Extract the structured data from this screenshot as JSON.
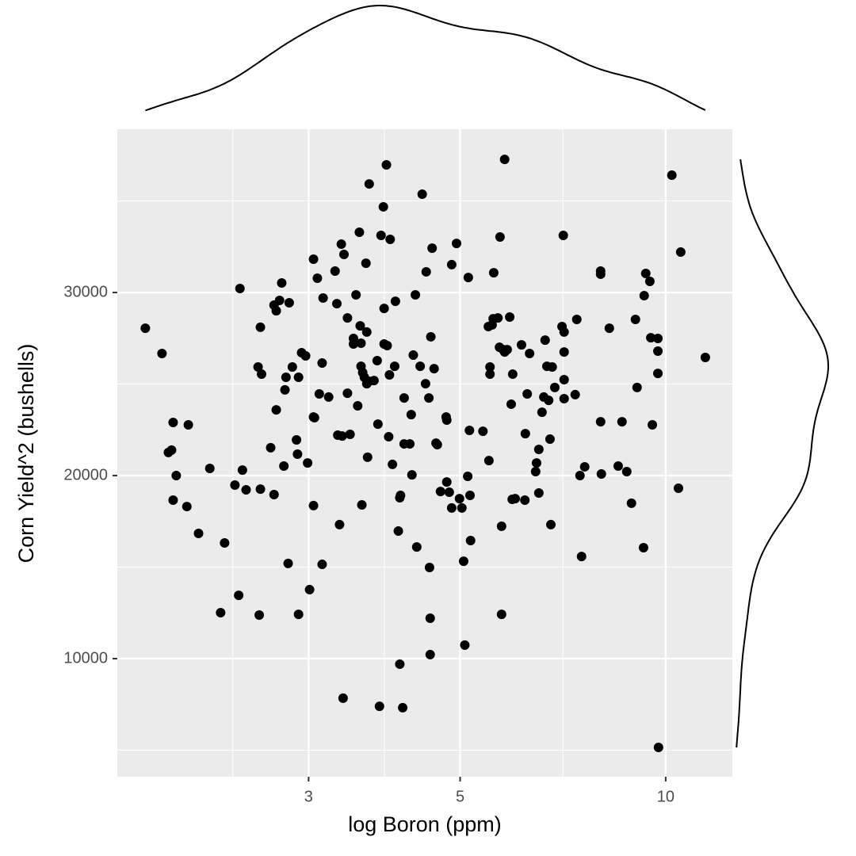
{
  "chart_data": {
    "type": "scatter",
    "x_label": "log Boron (ppm)",
    "y_label": "Corn Yield^2 (bushells)",
    "x_scale": "log",
    "grid": true,
    "marginal": "density",
    "xlim": [
      1.574,
      12.52
    ],
    "ylim": [
      3550,
      38920
    ],
    "xticks": [
      3,
      5,
      10
    ],
    "yticks": [
      10000,
      20000,
      30000
    ],
    "series": [
      {
        "color": "#000000",
        "x": [
          1.73,
          1.83,
          1.9,
          1.87,
          1.89,
          1.92,
          1.9,
          2.0,
          1.99,
          2.07,
          2.15,
          2.26,
          2.23,
          2.34,
          2.37,
          2.38,
          2.4,
          2.43,
          2.53,
          2.54,
          2.55,
          2.56,
          2.55,
          2.64,
          2.67,
          2.67,
          2.69,
          2.69,
          2.72,
          2.74,
          2.76,
          2.77,
          2.78,
          2.8,
          2.81,
          2.84,
          2.88,
          2.89,
          2.9,
          2.9,
          2.93,
          2.97,
          2.99,
          3.01,
          3.05,
          3.05,
          3.06,
          3.05,
          3.09,
          3.11,
          3.14,
          3.15,
          3.14,
          3.21,
          3.28,
          3.3,
          3.31,
          3.33,
          3.35,
          3.36,
          3.37,
          3.38,
          3.42,
          3.45,
          3.42,
          3.49,
          3.49,
          3.52,
          3.54,
          3.56,
          3.57,
          3.58,
          3.58,
          3.59,
          3.6,
          3.62,
          3.64,
          3.65,
          3.65,
          3.66,
          3.68,
          3.68,
          3.74,
          3.78,
          3.79,
          3.81,
          3.83,
          3.86,
          3.87,
          3.87,
          3.9,
          3.91,
          3.93,
          3.94,
          3.95,
          3.98,
          4.01,
          4.02,
          4.06,
          4.08,
          4.08,
          4.09,
          4.12,
          4.14,
          4.14,
          4.22,
          4.24,
          4.25,
          4.3,
          4.27,
          4.32,
          4.37,
          4.4,
          4.45,
          4.46,
          4.5,
          4.51,
          4.52,
          4.52,
          4.53,
          4.55,
          4.58,
          4.61,
          4.63,
          4.68,
          4.77,
          4.78,
          4.78,
          4.82,
          4.86,
          4.86,
          4.94,
          4.99,
          5.03,
          5.06,
          5.08,
          5.13,
          5.14,
          5.16,
          5.17,
          5.18,
          5.4,
          5.5,
          5.51,
          5.53,
          5.53,
          5.57,
          5.59,
          5.6,
          5.68,
          5.71,
          5.72,
          5.75,
          5.75,
          5.78,
          5.81,
          5.81,
          5.86,
          5.91,
          5.94,
          5.96,
          5.97,
          6.02,
          6.15,
          6.22,
          6.23,
          6.27,
          6.32,
          6.45,
          6.47,
          6.52,
          6.52,
          6.59,
          6.63,
          6.66,
          6.7,
          6.74,
          6.77,
          6.79,
          6.82,
          6.88,
          7.05,
          7.08,
          7.1,
          7.1,
          7.1,
          7.1,
          7.37,
          7.41,
          7.49,
          7.53,
          7.61,
          8.03,
          8.03,
          8.03,
          8.05,
          8.27,
          8.52,
          8.63,
          8.77,
          8.91,
          9.03,
          9.08,
          9.28,
          9.3,
          9.35,
          9.48,
          9.51,
          9.56,
          9.74,
          9.74,
          9.74,
          9.76,
          10.21,
          10.44,
          10.52,
          11.43
        ],
        "values": [
          28050,
          26670,
          22900,
          21260,
          21390,
          20000,
          18660,
          22770,
          18310,
          16840,
          20390,
          16320,
          12510,
          19480,
          13460,
          30220,
          20300,
          19220,
          25930,
          12380,
          28100,
          25540,
          19260,
          21520,
          18960,
          29310,
          29000,
          23590,
          29570,
          30520,
          20520,
          24680,
          25370,
          15200,
          29440,
          25930,
          21950,
          21170,
          12420,
          25370,
          26710,
          26540,
          20690,
          13770,
          31820,
          23200,
          23160,
          18360,
          30780,
          24460,
          15150,
          29700,
          26150,
          24290,
          31170,
          29390,
          22210,
          17320,
          32640,
          22160,
          7840,
          32080,
          24500,
          22250,
          28610,
          27490,
          27190,
          29870,
          23810,
          33290,
          28180,
          27230,
          25970,
          18400,
          25630,
          25370,
          31600,
          27840,
          25020,
          21000,
          35930,
          25150,
          25190,
          26280,
          22810,
          7400,
          33120,
          34680,
          27190,
          29130,
          36970,
          27100,
          22120,
          25500,
          32900,
          20610,
          25970,
          29520,
          16970,
          9700,
          18790,
          18920,
          7320,
          21730,
          24240,
          21730,
          23330,
          20040,
          29870,
          26580,
          16100,
          25970,
          35370,
          25020,
          31130,
          24240,
          14980,
          12210,
          10220,
          27580,
          32420,
          25840,
          21770,
          21690,
          19130,
          23200,
          23030,
          19650,
          19090,
          31520,
          18230,
          32680,
          18740,
          18230,
          15320,
          10740,
          19960,
          30820,
          22470,
          18920,
          16450,
          22420,
          28140,
          20820,
          25930,
          25540,
          28230,
          28570,
          31080,
          28610,
          27010,
          33030,
          17230,
          12420,
          26880,
          37270,
          26750,
          26880,
          28660,
          23900,
          18700,
          25540,
          18740,
          27140,
          18660,
          22290,
          24460,
          26670,
          20220,
          20690,
          21430,
          19050,
          23460,
          24290,
          27400,
          25970,
          24110,
          21990,
          17320,
          25930,
          24810,
          28140,
          33120,
          27840,
          26750,
          24200,
          25240,
          24420,
          28530,
          20000,
          15580,
          20480,
          22940,
          31170,
          31000,
          20090,
          28050,
          20520,
          22940,
          20220,
          18490,
          28530,
          24810,
          16060,
          29830,
          31040,
          30610,
          27530,
          22770,
          27490,
          26800,
          25580,
          5150,
          36410,
          19310,
          32210,
          26450
        ]
      }
    ]
  }
}
